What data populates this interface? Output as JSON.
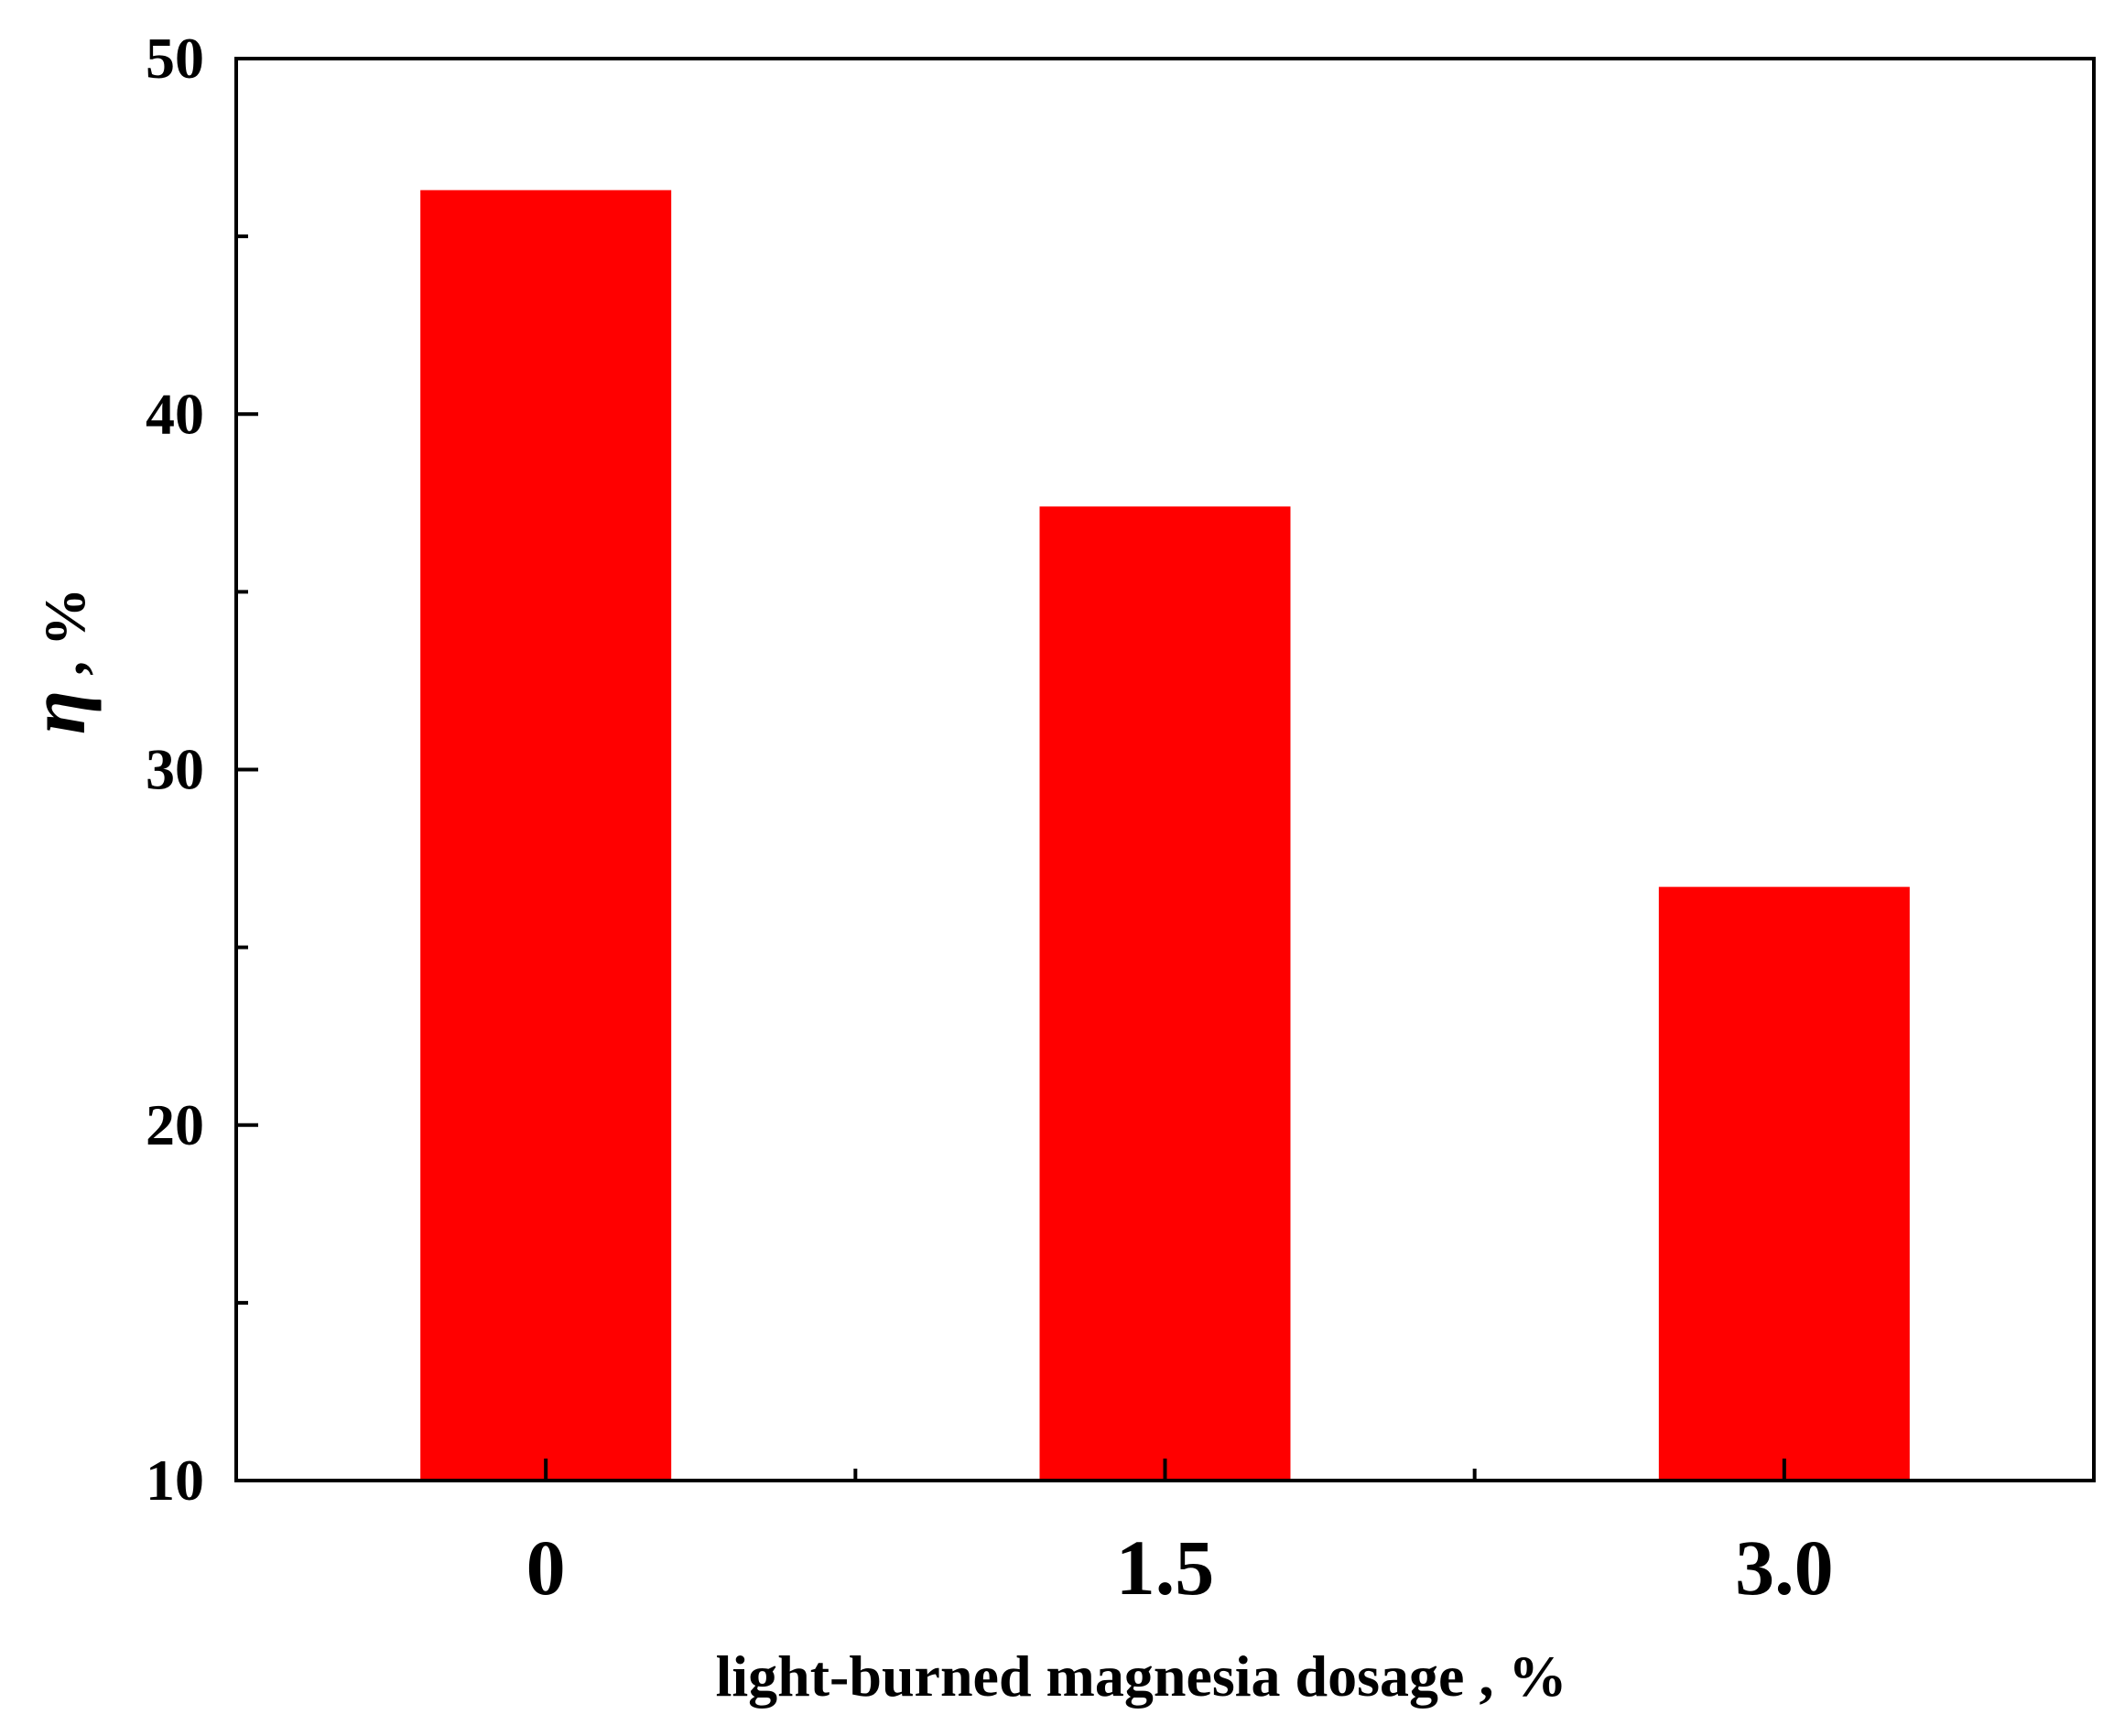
{
  "chart_data": {
    "type": "bar",
    "title": "",
    "xlabel": "light-burned magnesia dosage , %",
    "ylabel_symbol": "η",
    "ylabel_rest": " , %",
    "categories": [
      "0",
      "1.5",
      "3.0"
    ],
    "values": [
      46.3,
      37.4,
      26.7
    ],
    "ylim": [
      10,
      50
    ],
    "yticks": [
      10,
      20,
      30,
      40,
      50
    ],
    "ytick_labels": [
      "10",
      "20",
      "30",
      "40",
      "50"
    ],
    "y_minor_step": 5,
    "grid": false,
    "legend": "none",
    "bar_color": "#ff0000"
  }
}
